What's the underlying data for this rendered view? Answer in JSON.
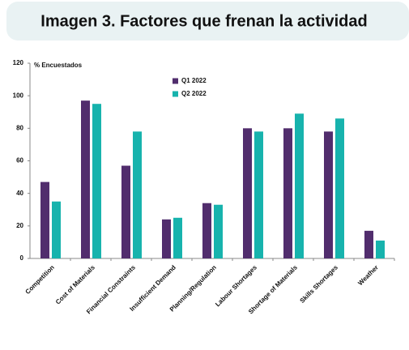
{
  "chart_data": {
    "type": "bar",
    "title": "Imagen 3. Factores que frenan la actividad",
    "y_label": "% Encuestados",
    "categories": [
      "Competition",
      "Cost of Materials",
      "Financial Constraints",
      "Insufficient Demand",
      "Planning/Regulation",
      "Labour Shortages",
      "Shortage of Materials",
      "Skills Shortages",
      "Weather"
    ],
    "series": [
      {
        "name": "Q1 2022",
        "color": "#512d6d",
        "values": [
          47,
          97,
          57,
          24,
          34,
          80,
          80,
          78,
          17
        ]
      },
      {
        "name": "Q2 2022",
        "color": "#17b3ad",
        "values": [
          35,
          95,
          78,
          25,
          33,
          78,
          89,
          86,
          11
        ]
      }
    ],
    "ylim": [
      0,
      120
    ],
    "yticks": [
      0,
      20,
      40,
      60,
      80,
      100,
      120
    ],
    "grid": false
  }
}
